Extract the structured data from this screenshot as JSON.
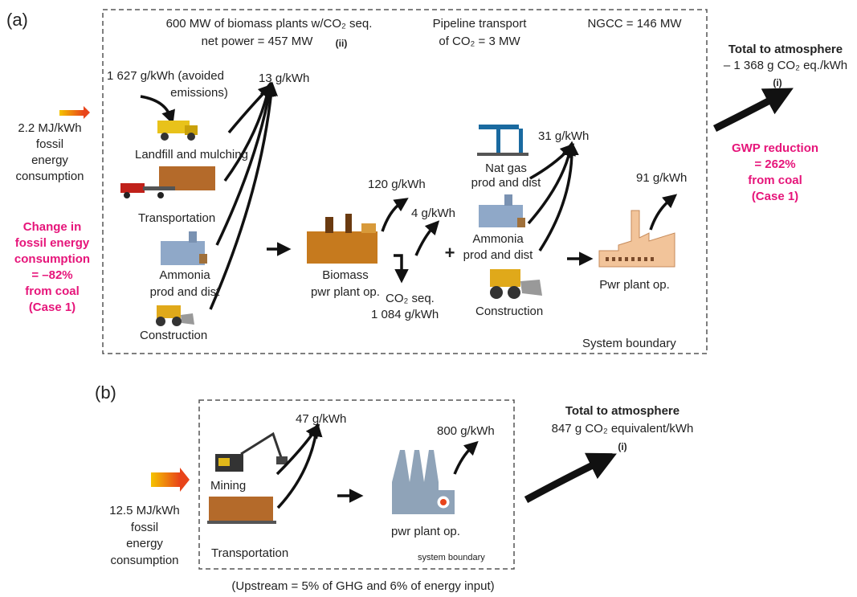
{
  "panel_a": {
    "label": "(a)",
    "header": {
      "biomass": [
        "600 MW of biomass plants w/CO₂ seq.",
        "net power = 457 MW"
      ],
      "biomass_note": "(ii)",
      "pipeline": [
        "Pipeline transport",
        "of CO₂ = 3 MW"
      ],
      "ngcc": "NGCC = 146 MW"
    },
    "input": [
      "2.2 MJ/kWh",
      "fossil",
      "energy",
      "consumption"
    ],
    "energy_change": [
      "Change in",
      "fossil energy",
      "consumption",
      "= –82%",
      "from coal",
      "(Case 1)"
    ],
    "total": {
      "title": "Total to atmosphere",
      "value": "– 1 368 g CO₂ eq./kWh",
      "note": "(i)"
    },
    "gwp": [
      "GWP reduction",
      "= 262%",
      "from coal",
      "(Case 1)"
    ],
    "avoided": [
      "1 627 g/kWh (avoided",
      "emissions)"
    ],
    "upstream_emission": "13 g/kWh",
    "upstream": {
      "landfill": "Landfill and mulching",
      "transportation": "Transportation",
      "ammonia": [
        "Ammonia",
        "prod and dist"
      ],
      "construction": "Construction"
    },
    "biomass_plant": [
      "Biomass",
      "pwr plant op."
    ],
    "emission_120": "120 g/kWh",
    "emission_4": "4 g/kWh",
    "co2_seq": [
      "CO₂ seq.",
      "1 084 g/kWh"
    ],
    "plus": "+",
    "ngcc_upstream": {
      "nat_gas": [
        "Nat gas",
        "prod and dist"
      ],
      "ammonia": [
        "Ammonia",
        "prod and dist"
      ],
      "construction": "Construction"
    },
    "ngcc_emission": "31 g/kWh",
    "plant_emission": "91 g/kWh",
    "plant": "Pwr plant op.",
    "boundary": "System boundary"
  },
  "panel_b": {
    "label": "(b)",
    "input": [
      "12.5 MJ/kWh",
      "fossil",
      "energy",
      "consumption"
    ],
    "mining": "Mining",
    "transportation": "Transportation",
    "upstream_emission": "47 g/kWh",
    "plant": "pwr plant op.",
    "plant_emission": "800 g/kWh",
    "boundary": "system boundary",
    "total": {
      "title": "Total to atmosphere",
      "value": "847 g CO₂ equivalent/kWh",
      "note": "(i)"
    },
    "footnote": "(Upstream = 5% of GHG and 6% of energy input)"
  }
}
